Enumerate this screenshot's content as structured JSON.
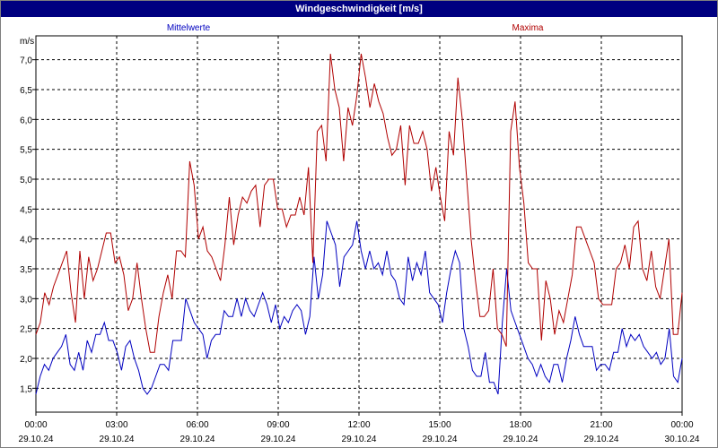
{
  "window": {
    "title": "Windgeschwindigkeit [m/s]"
  },
  "chart_data": {
    "type": "line",
    "title": "Windgeschwindigkeit [m/s]",
    "ylabel": "m/s",
    "ylim": [
      1.1,
      7.4
    ],
    "xlim": [
      0,
      24
    ],
    "grid": true,
    "y_ticks": [
      "1,5",
      "2,0",
      "2,5",
      "3,0",
      "3,5",
      "4,0",
      "4,5",
      "5,0",
      "5,5",
      "6,0",
      "6,5",
      "7,0"
    ],
    "y_tick_values": [
      1.5,
      2.0,
      2.5,
      3.0,
      3.5,
      4.0,
      4.5,
      5.0,
      5.5,
      6.0,
      6.5,
      7.0
    ],
    "x_ticks": [
      {
        "time": "00:00",
        "date": "29.10.24"
      },
      {
        "time": "03:00",
        "date": "29.10.24"
      },
      {
        "time": "06:00",
        "date": "29.10.24"
      },
      {
        "time": "09:00",
        "date": "29.10.24"
      },
      {
        "time": "12:00",
        "date": "29.10.24"
      },
      {
        "time": "15:00",
        "date": "29.10.24"
      },
      {
        "time": "18:00",
        "date": "29.10.24"
      },
      {
        "time": "21:00",
        "date": "29.10.24"
      },
      {
        "time": "00:00",
        "date": "30.10.24"
      }
    ],
    "x_tick_values": [
      0,
      3,
      6,
      9,
      12,
      15,
      18,
      21,
      24
    ],
    "series": [
      {
        "name": "Mittelwerte",
        "color": "#0000c0",
        "values": [
          1.4,
          1.7,
          1.9,
          1.8,
          2.0,
          2.1,
          2.2,
          2.4,
          1.9,
          1.8,
          2.1,
          1.8,
          2.3,
          2.1,
          2.4,
          2.4,
          2.6,
          2.3,
          2.3,
          2.1,
          1.8,
          2.2,
          2.3,
          2.0,
          1.8,
          1.5,
          1.4,
          1.5,
          1.7,
          1.9,
          1.9,
          1.8,
          2.3,
          2.3,
          2.3,
          3.0,
          2.8,
          2.6,
          2.5,
          2.4,
          2.0,
          2.3,
          2.4,
          2.4,
          2.8,
          2.7,
          2.7,
          3.0,
          2.7,
          3.0,
          2.8,
          2.7,
          2.9,
          3.1,
          2.9,
          2.6,
          2.9,
          2.5,
          2.7,
          2.6,
          2.8,
          2.9,
          2.8,
          2.4,
          2.7,
          3.7,
          3.0,
          3.4,
          4.3,
          4.1,
          3.9,
          3.2,
          3.7,
          3.8,
          3.9,
          4.3,
          3.8,
          3.5,
          3.8,
          3.5,
          3.6,
          3.4,
          3.8,
          3.4,
          3.3,
          3.0,
          2.9,
          3.7,
          3.3,
          3.6,
          3.4,
          3.8,
          3.1,
          3.0,
          2.9,
          2.6,
          3.1,
          3.5,
          3.8,
          3.6,
          2.5,
          2.2,
          1.8,
          1.7,
          1.7,
          2.1,
          1.6,
          1.6,
          1.4,
          2.6,
          3.5,
          2.8,
          2.6,
          2.4,
          2.2,
          2.0,
          1.9,
          1.7,
          1.9,
          1.7,
          1.6,
          1.9,
          1.9,
          1.6,
          2.0,
          2.3,
          2.7,
          2.4,
          2.2,
          2.2,
          2.2,
          1.8,
          1.9,
          1.9,
          1.8,
          2.1,
          2.1,
          2.5,
          2.2,
          2.4,
          2.3,
          2.4,
          2.2,
          2.1,
          2.0,
          2.1,
          1.9,
          2.0,
          2.5,
          1.7,
          1.6,
          2.0
        ]
      },
      {
        "name": "Maxima",
        "color": "#b00000",
        "values": [
          2.4,
          2.6,
          3.1,
          2.9,
          3.2,
          3.4,
          3.6,
          3.8,
          3.1,
          2.6,
          3.8,
          3.0,
          3.7,
          3.3,
          3.5,
          3.8,
          4.1,
          4.1,
          3.6,
          3.7,
          3.4,
          2.8,
          3.0,
          3.6,
          3.0,
          2.5,
          2.1,
          2.1,
          2.7,
          3.1,
          3.4,
          3.0,
          3.8,
          3.8,
          3.7,
          5.3,
          4.9,
          4.0,
          4.2,
          3.8,
          3.7,
          3.5,
          3.3,
          3.9,
          4.7,
          3.9,
          4.4,
          4.7,
          4.6,
          4.8,
          4.9,
          4.2,
          4.9,
          5.0,
          5.0,
          4.5,
          4.5,
          4.2,
          4.4,
          4.4,
          4.7,
          4.4,
          5.2,
          3.6,
          5.8,
          5.9,
          5.3,
          7.1,
          6.5,
          6.2,
          5.3,
          6.2,
          5.9,
          6.4,
          7.1,
          6.7,
          6.2,
          6.6,
          6.3,
          6.1,
          5.7,
          5.4,
          5.5,
          5.9,
          4.9,
          5.9,
          5.6,
          5.6,
          5.8,
          5.5,
          4.8,
          5.2,
          4.7,
          4.3,
          5.8,
          5.4,
          6.7,
          6.0,
          5.0,
          4.0,
          3.3,
          2.7,
          2.7,
          2.8,
          3.5,
          2.5,
          2.4,
          2.2,
          5.8,
          6.3,
          5.2,
          4.6,
          3.6,
          3.5,
          3.5,
          2.3,
          3.3,
          3.0,
          2.4,
          2.8,
          2.6,
          3.0,
          3.4,
          4.2,
          4.2,
          4.0,
          3.8,
          3.6,
          3.0,
          2.9,
          2.9,
          2.9,
          3.5,
          3.6,
          3.9,
          3.5,
          4.2,
          4.3,
          3.5,
          3.3,
          3.8,
          3.2,
          3.0,
          3.5,
          4.0,
          2.4,
          2.4,
          3.1
        ]
      }
    ]
  }
}
